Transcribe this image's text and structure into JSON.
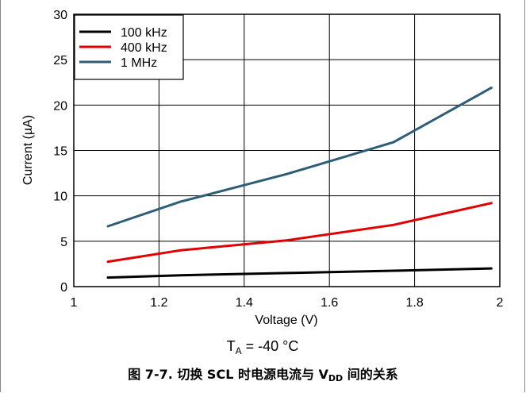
{
  "chart_data": {
    "type": "line",
    "xlabel": "Voltage (V)",
    "ylabel": "Current (µA)",
    "xlim": [
      1,
      2
    ],
    "ylim": [
      0,
      30
    ],
    "xticks": [
      "1",
      "1.2",
      "1.4",
      "1.6",
      "1.8",
      "2"
    ],
    "yticks": [
      "0",
      "5",
      "10",
      "15",
      "20",
      "25",
      "30"
    ],
    "grid": true,
    "legend_position": "top-left",
    "series": [
      {
        "name": "100 kHz",
        "color": "#000000",
        "x": [
          1.08,
          1.25,
          1.5,
          1.75,
          1.98
        ],
        "y": [
          1.0,
          1.25,
          1.5,
          1.75,
          2.0
        ]
      },
      {
        "name": "400 kHz",
        "color": "#e00000",
        "x": [
          1.08,
          1.25,
          1.5,
          1.75,
          1.98
        ],
        "y": [
          2.75,
          4.0,
          5.1,
          6.8,
          9.2
        ]
      },
      {
        "name": "1 MHz",
        "color": "#2e5d78",
        "x": [
          1.08,
          1.25,
          1.5,
          1.75,
          1.98
        ],
        "y": [
          6.65,
          9.35,
          12.4,
          15.9,
          21.9
        ]
      }
    ]
  },
  "condition": {
    "t_symbol": "T",
    "t_subscript": "A",
    "t_value": " = -40 °C"
  },
  "caption": {
    "prefix": "图 7-7. 切换 SCL 时电源电流与 V",
    "subscript": "DD",
    "suffix": " 间的关系"
  }
}
